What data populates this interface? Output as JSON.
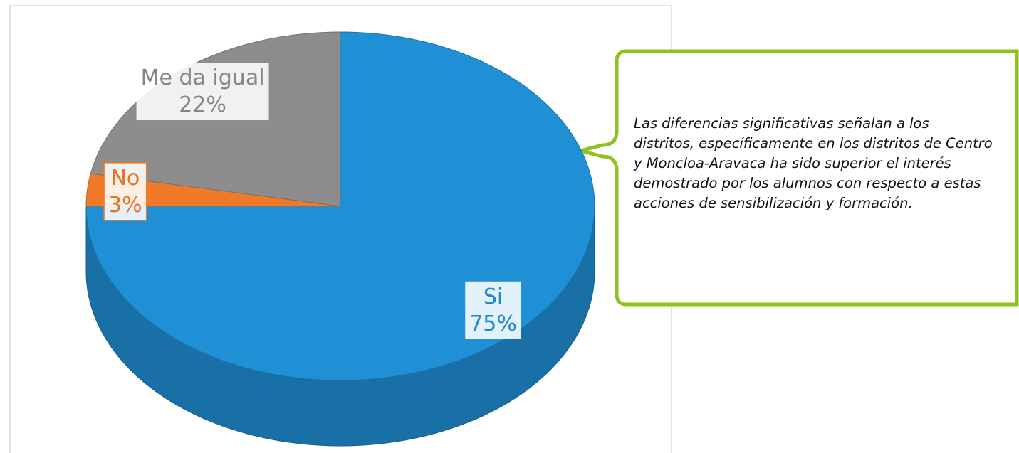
{
  "chart_data": {
    "type": "pie",
    "categories": [
      "Si",
      "No",
      "Me da igual"
    ],
    "values": [
      75,
      3,
      22
    ],
    "value_labels": [
      "75%",
      "3%",
      "22%"
    ],
    "colors": [
      "#1f8fd6",
      "#f07a28",
      "#8d8d8d"
    ],
    "annotation": "Las diferencias significativas señalan a los distritos, específicamente en los distritos de Centro y Moncloa-Aravaca ha sido superior el interés demostrado por los alumnos con respecto a estas acciones de sensibilización y formación."
  }
}
